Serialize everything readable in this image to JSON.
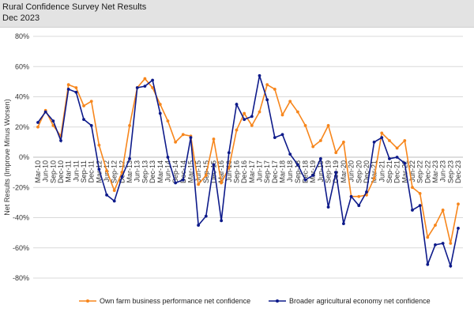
{
  "header": {
    "title": "Rural Confidence Survey Net Results",
    "subtitle": "Dec 2023"
  },
  "chart_data": {
    "type": "line",
    "title": "",
    "xlabel": "",
    "ylabel": "Net Results (Improve Minus Worsen)",
    "ylim": [
      -80,
      80
    ],
    "yticks": [
      -80,
      -60,
      -40,
      -20,
      0,
      20,
      40,
      60,
      80
    ],
    "ytick_labels": [
      "-80%",
      "-60%",
      "-40%",
      "-20%",
      "0%",
      "20%",
      "40%",
      "60%",
      "80%"
    ],
    "grid": "horizontal",
    "legend": "bottom",
    "x": [
      "Mar-10",
      "Jun-10",
      "Sep-10",
      "Dec-10",
      "Mar-11",
      "Jun-11",
      "Sep-11",
      "Dec-11",
      "Mar-12",
      "Jun-12",
      "Sep-12",
      "Dec-12",
      "Mar-13",
      "Jun-13",
      "Sep-13",
      "Dec-13",
      "Mar-14",
      "Jun-14",
      "Sep-14",
      "Dec-14",
      "Mar-15",
      "Jun-15",
      "Sep-15",
      "Dec-15",
      "Mar-16",
      "Jun-16",
      "Sep-16",
      "Dec-16",
      "Mar-17",
      "Jun-17",
      "Sep-17",
      "Dec-17",
      "Mar-18",
      "Jun-18",
      "Sep-18",
      "Dec-18",
      "Mar-19",
      "Jun-19",
      "Sep-19",
      "Dec-19",
      "Mar-20",
      "Jun-20",
      "Sep-20",
      "Dec-20",
      "Mar-21",
      "Jun-21",
      "Sep-21",
      "Dec-21",
      "Mar-22",
      "Jun-22",
      "Sep-22",
      "Dec-22",
      "Mar-23",
      "Jun-23",
      "Sep-23",
      "Dec-23"
    ],
    "series": [
      {
        "name": "Own farm business performance net confidence",
        "color": "#f7861c",
        "values": [
          20,
          31,
          21,
          14,
          48,
          46,
          34,
          37,
          8,
          -9,
          -22,
          -10,
          21,
          46,
          52,
          46,
          35,
          24,
          10,
          15,
          14,
          -18,
          -12,
          12,
          -17,
          -7,
          18,
          29,
          21,
          30,
          48,
          45,
          28,
          37,
          30,
          21,
          7,
          11,
          21,
          3,
          10,
          -26,
          -26,
          -25,
          -14,
          16,
          11,
          6,
          11,
          -20,
          -24,
          -53,
          -45,
          -35,
          -57,
          -31
        ]
      },
      {
        "name": "Broader agricultural economy net confidence",
        "color": "#0d1a8a",
        "values": [
          23,
          30,
          24,
          11,
          45,
          43,
          25,
          21,
          -8,
          -25,
          -29,
          -13,
          -1,
          46,
          47,
          51,
          29,
          0,
          -17,
          -15,
          13,
          -45,
          -39,
          -5,
          -42,
          3,
          35,
          25,
          27,
          54,
          38,
          13,
          15,
          2,
          -5,
          -15,
          -12,
          -1,
          -33,
          -10,
          -44,
          -26,
          -32,
          -23,
          10,
          13,
          -1,
          0,
          -4,
          -35,
          -32,
          -71,
          -58,
          -57,
          -72,
          -47
        ]
      }
    ]
  }
}
